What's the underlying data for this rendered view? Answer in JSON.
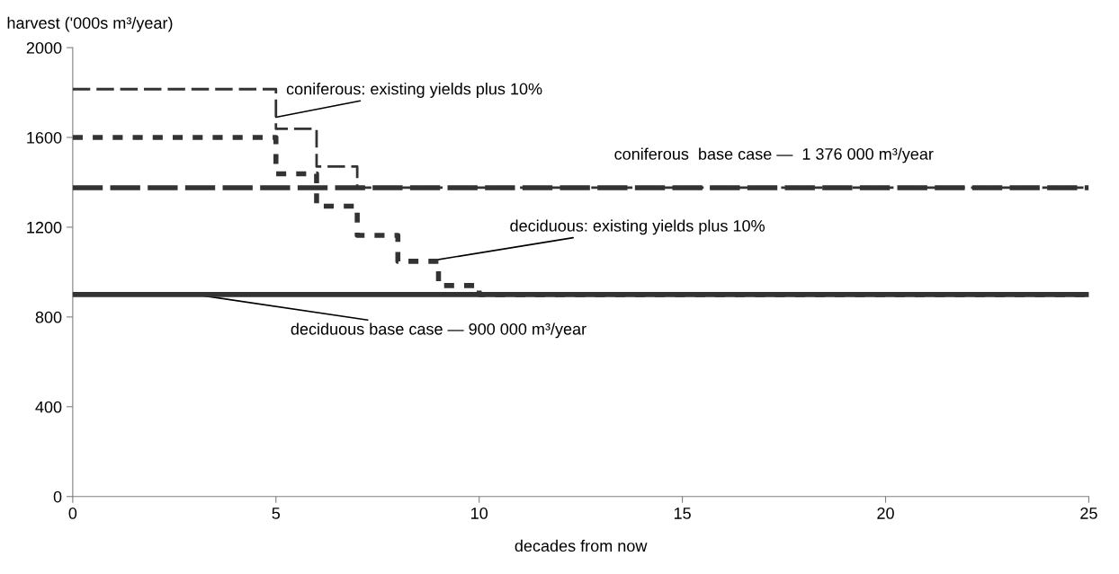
{
  "chart_data": {
    "type": "step",
    "xlabel": "decades from now",
    "ylabel": "harvest ('000s m³/year)",
    "xlim": [
      0,
      25
    ],
    "xticks": [
      0,
      5,
      10,
      15,
      20,
      25
    ],
    "ylim": [
      0,
      2000
    ],
    "yticks": [
      0,
      400,
      800,
      1200,
      1600,
      2000
    ],
    "grid": false,
    "legend": false,
    "series": [
      {
        "type": "line",
        "color": "#333333",
        "line_style": "dashed",
        "x": [
          0,
          25
        ],
        "values": [
          1376,
          1376
        ]
      },
      {
        "type": "line",
        "color": "#333333",
        "line_style": "solid",
        "x": [
          0,
          25
        ],
        "values": [
          900,
          900
        ]
      },
      {
        "color": "#333333",
        "line_style": "dashed",
        "x": [
          0,
          5,
          6,
          7,
          25
        ],
        "values": [
          1815,
          1638,
          1470,
          1376,
          1376
        ]
      },
      {
        "color": "#333333",
        "line_style": "dotted",
        "x": [
          0,
          5,
          6,
          7,
          8,
          9,
          10,
          25
        ],
        "values": [
          1600,
          1438,
          1294,
          1164,
          1048,
          940,
          900,
          900
        ]
      }
    ],
    "annotations": [
      {
        "text": "coniferous: existing yields plus 10%",
        "x": 5,
        "y": 1690
      },
      "coniferous  base case —  1 376 000 m³/year",
      {
        "text": "deciduous: existing yields plus 10%",
        "x": 8.8,
        "y": 1050
      },
      {
        "text": "deciduous base case — 900 000 m³/year",
        "x": 3,
        "y": 900
      }
    ]
  }
}
